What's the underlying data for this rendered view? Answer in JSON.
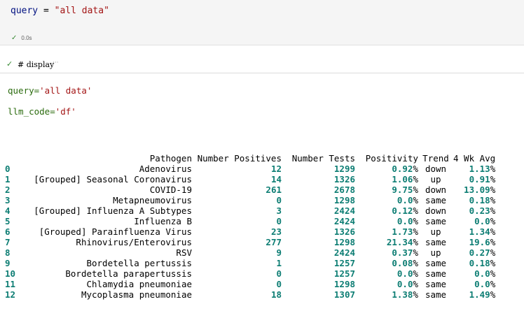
{
  "cell1": {
    "code_var": "query",
    "code_op": " = ",
    "code_str": "\"all data\"",
    "exec_time": "0.0s"
  },
  "cell2": {
    "comment": "# display",
    "dots": "···"
  },
  "output": {
    "query_key": "query=",
    "query_val": "'all data'",
    "llm_key": "llm_code=",
    "llm_val": "'df'"
  },
  "table": {
    "columns": [
      "Pathogen",
      "Number Positives",
      "Number Tests",
      "Positivity",
      "Trend",
      "4 Wk Avg"
    ],
    "rows": [
      {
        "idx": "0",
        "pathogen": "Adenovirus",
        "positives": "12",
        "tests": "1299",
        "positivity": "0.92",
        "trend": "down",
        "avg": "1.13"
      },
      {
        "idx": "1",
        "pathogen": "[Grouped] Seasonal Coronavirus",
        "positives": "14",
        "tests": "1326",
        "positivity": "1.06",
        "trend": "up",
        "avg": "0.91"
      },
      {
        "idx": "2",
        "pathogen": "COVID-19",
        "positives": "261",
        "tests": "2678",
        "positivity": "9.75",
        "trend": "down",
        "avg": "13.09"
      },
      {
        "idx": "3",
        "pathogen": "Metapneumovirus",
        "positives": "0",
        "tests": "1298",
        "positivity": "0.0",
        "trend": "same",
        "avg": "0.18"
      },
      {
        "idx": "4",
        "pathogen": "[Grouped] Influenza A Subtypes",
        "positives": "3",
        "tests": "2424",
        "positivity": "0.12",
        "trend": "down",
        "avg": "0.23"
      },
      {
        "idx": "5",
        "pathogen": "Influenza B",
        "positives": "0",
        "tests": "2424",
        "positivity": "0.0",
        "trend": "same",
        "avg": "0.0"
      },
      {
        "idx": "6",
        "pathogen": "[Grouped] Parainfluenza Virus",
        "positives": "23",
        "tests": "1326",
        "positivity": "1.73",
        "trend": "up",
        "avg": "1.34"
      },
      {
        "idx": "7",
        "pathogen": "Rhinovirus/Enterovirus",
        "positives": "277",
        "tests": "1298",
        "positivity": "21.34",
        "trend": "same",
        "avg": "19.6"
      },
      {
        "idx": "8",
        "pathogen": "RSV",
        "positives": "9",
        "tests": "2424",
        "positivity": "0.37",
        "trend": "up",
        "avg": "0.27"
      },
      {
        "idx": "9",
        "pathogen": "Bordetella pertussis",
        "positives": "1",
        "tests": "1257",
        "positivity": "0.08",
        "trend": "same",
        "avg": "0.18"
      },
      {
        "idx": "10",
        "pathogen": "Bordetella parapertussis",
        "positives": "0",
        "tests": "1257",
        "positivity": "0.0",
        "trend": "same",
        "avg": "0.0"
      },
      {
        "idx": "11",
        "pathogen": "Chlamydia pneumoniae",
        "positives": "0",
        "tests": "1298",
        "positivity": "0.0",
        "trend": "same",
        "avg": "0.0"
      },
      {
        "idx": "12",
        "pathogen": "Mycoplasma pneumoniae",
        "positives": "18",
        "tests": "1307",
        "positivity": "1.38",
        "trend": "same",
        "avg": "1.49"
      }
    ],
    "percent_sign": "%"
  },
  "colors": {
    "number_teal": "#0c7d73",
    "string_red": "#a31515",
    "keyword_blue": "#001080",
    "success_green": "#388a34"
  }
}
